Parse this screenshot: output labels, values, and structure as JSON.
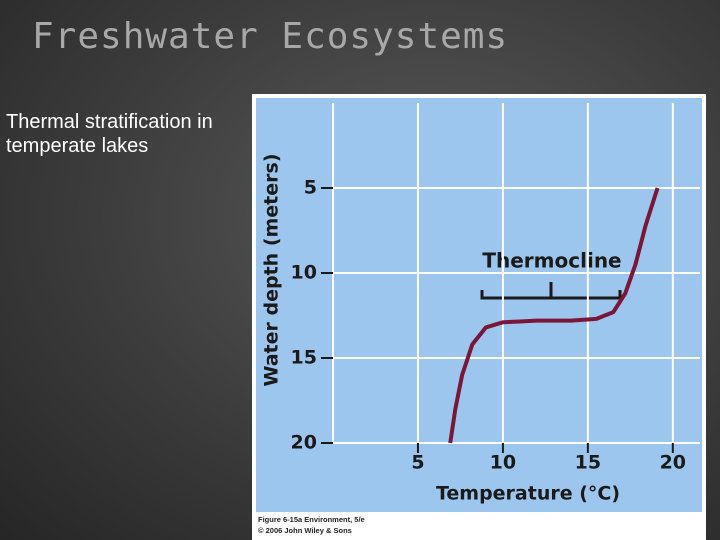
{
  "slide": {
    "title": "Freshwater Ecosystems",
    "body": "Thermal stratification in temperate lakes"
  },
  "chart_data": {
    "type": "line",
    "xlabel": "Temperature (°C)",
    "ylabel": "Water depth (meters)",
    "annotation": "Thermocline",
    "caption": [
      "Figure 6-15a Environment, 5/e",
      "© 2006 John Wiley & Sons"
    ],
    "xlim": [
      0,
      21.6
    ],
    "ylim": [
      0,
      20
    ],
    "y_inverted": true,
    "xticks": [
      5,
      10,
      15,
      20
    ],
    "yticks": [
      5,
      10,
      15,
      20
    ],
    "grid": true,
    "series": [
      {
        "color": "#7a1638",
        "x": [
          6.9,
          7.2,
          7.6,
          8.2,
          9,
          10,
          12,
          14,
          15.5,
          16.5,
          17.2,
          17.8,
          18.4,
          19.1
        ],
        "values": [
          20,
          18,
          16,
          14.2,
          13.2,
          12.9,
          12.8,
          12.8,
          12.7,
          12.3,
          11.2,
          9.5,
          7.2,
          5
        ]
      }
    ]
  }
}
